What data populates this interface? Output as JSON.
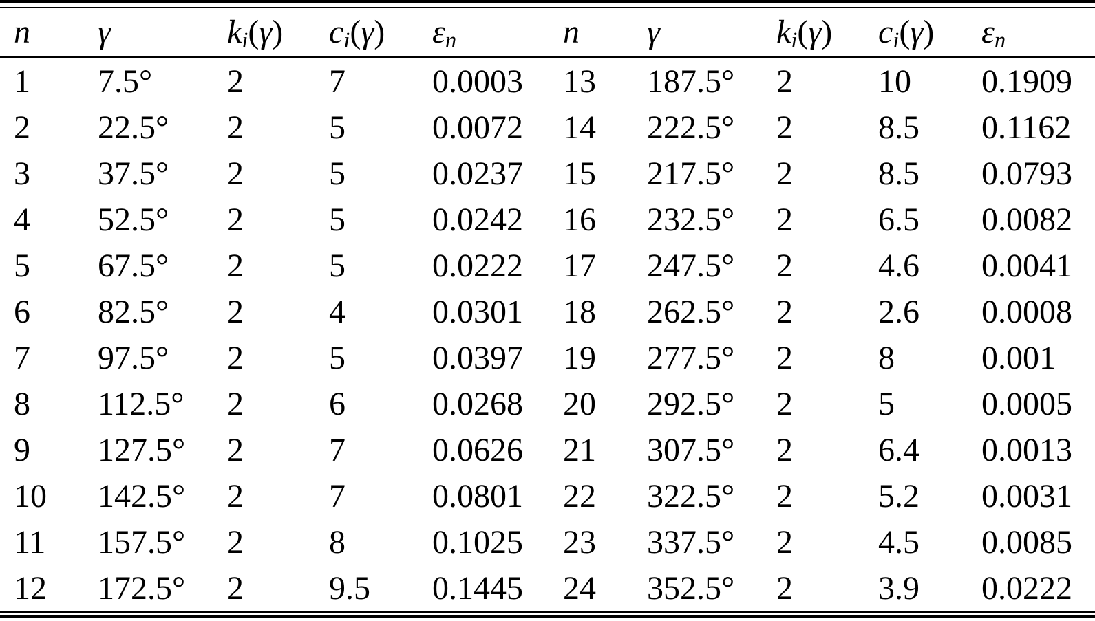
{
  "table": {
    "header": {
      "col_n": "n",
      "col_gamma": "γ",
      "k_base": "k",
      "k_sub": "i",
      "c_base": "c",
      "c_sub": "i",
      "eps_base": "ε",
      "eps_sub": "n",
      "paren_open": "(",
      "paren_close": ")"
    },
    "left_rows": [
      {
        "n": "1",
        "gamma": "7.5°",
        "k": "2",
        "c": "7",
        "eps": "0.0003"
      },
      {
        "n": "2",
        "gamma": "22.5°",
        "k": "2",
        "c": "5",
        "eps": "0.0072"
      },
      {
        "n": "3",
        "gamma": "37.5°",
        "k": "2",
        "c": "5",
        "eps": "0.0237"
      },
      {
        "n": "4",
        "gamma": "52.5°",
        "k": "2",
        "c": "5",
        "eps": "0.0242"
      },
      {
        "n": "5",
        "gamma": "67.5°",
        "k": "2",
        "c": "5",
        "eps": "0.0222"
      },
      {
        "n": "6",
        "gamma": "82.5°",
        "k": "2",
        "c": "4",
        "eps": "0.0301"
      },
      {
        "n": "7",
        "gamma": "97.5°",
        "k": "2",
        "c": "5",
        "eps": "0.0397"
      },
      {
        "n": "8",
        "gamma": "112.5°",
        "k": "2",
        "c": "6",
        "eps": "0.0268"
      },
      {
        "n": "9",
        "gamma": "127.5°",
        "k": "2",
        "c": "7",
        "eps": "0.0626"
      },
      {
        "n": "10",
        "gamma": "142.5°",
        "k": "2",
        "c": "7",
        "eps": "0.0801"
      },
      {
        "n": "11",
        "gamma": "157.5°",
        "k": "2",
        "c": "8",
        "eps": "0.1025"
      },
      {
        "n": "12",
        "gamma": "172.5°",
        "k": "2",
        "c": "9.5",
        "eps": "0.1445"
      }
    ],
    "right_rows": [
      {
        "n": "13",
        "gamma": "187.5°",
        "k": "2",
        "c": "10",
        "eps": "0.1909"
      },
      {
        "n": "14",
        "gamma": "222.5°",
        "k": "2",
        "c": "8.5",
        "eps": "0.1162"
      },
      {
        "n": "15",
        "gamma": "217.5°",
        "k": "2",
        "c": "8.5",
        "eps": "0.0793"
      },
      {
        "n": "16",
        "gamma": "232.5°",
        "k": "2",
        "c": "6.5",
        "eps": "0.0082"
      },
      {
        "n": "17",
        "gamma": "247.5°",
        "k": "2",
        "c": "4.6",
        "eps": "0.0041"
      },
      {
        "n": "18",
        "gamma": "262.5°",
        "k": "2",
        "c": "2.6",
        "eps": "0.0008"
      },
      {
        "n": "19",
        "gamma": "277.5°",
        "k": "2",
        "c": "8",
        "eps": "0.001"
      },
      {
        "n": "20",
        "gamma": "292.5°",
        "k": "2",
        "c": "5",
        "eps": "0.0005"
      },
      {
        "n": "21",
        "gamma": "307.5°",
        "k": "2",
        "c": "6.4",
        "eps": "0.0013"
      },
      {
        "n": "22",
        "gamma": "322.5°",
        "k": "2",
        "c": "5.2",
        "eps": "0.0031"
      },
      {
        "n": "23",
        "gamma": "337.5°",
        "k": "2",
        "c": "4.5",
        "eps": "0.0085"
      },
      {
        "n": "24",
        "gamma": "352.5°",
        "k": "2",
        "c": "3.9",
        "eps": "0.0222"
      }
    ]
  }
}
